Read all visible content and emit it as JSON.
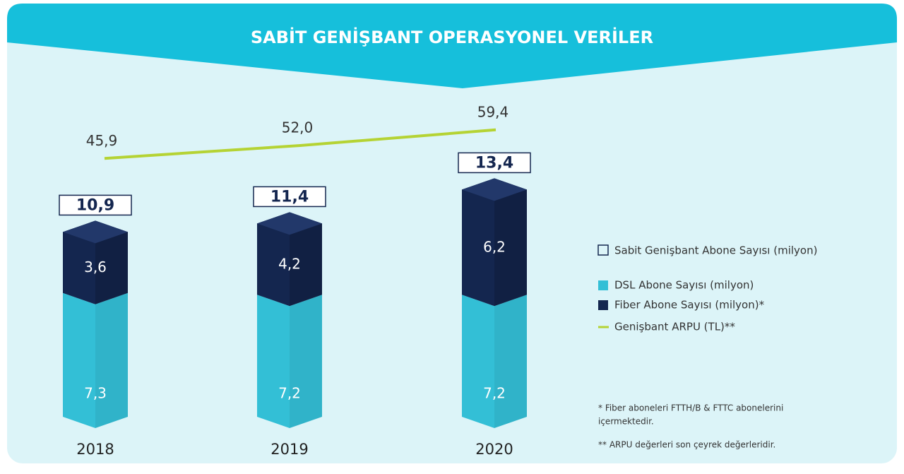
{
  "chart_data": {
    "type": "bar",
    "stacked": true,
    "title": "SABİT GENİŞBANT OPERASYONEL VERİLER",
    "categories": [
      "2018",
      "2019",
      "2020"
    ],
    "series": [
      {
        "name": "DSL Abone Sayısı (milyon)",
        "color": "#33bfd6",
        "values": [
          7.3,
          7.2,
          7.2
        ],
        "value_labels": [
          "7,3",
          "7,2",
          "7,2"
        ]
      },
      {
        "name": "Fiber Abone Sayısı (milyon)*",
        "color": "#14264f",
        "values": [
          3.6,
          4.2,
          6.2
        ],
        "value_labels": [
          "3,6",
          "4,2",
          "6,2"
        ]
      }
    ],
    "totals": {
      "name": "Sabit Genişbant Abone Sayısı (milyon)",
      "values": [
        10.9,
        11.4,
        13.4
      ],
      "value_labels": [
        "10,9",
        "11,4",
        "13,4"
      ]
    },
    "line": {
      "type": "line",
      "name": "Genişbant ARPU (TL)**",
      "color": "#b5d334",
      "axis": "y2",
      "values": [
        45.9,
        52.0,
        59.4
      ],
      "value_labels": [
        "45,9",
        "52,0",
        "59,4"
      ]
    },
    "notes": [
      "* Fiber aboneleri FTTH/B & FTTC abonelerini",
      "içermektedir.",
      "** ARPU değerleri son çeyrek değerleridir."
    ]
  }
}
